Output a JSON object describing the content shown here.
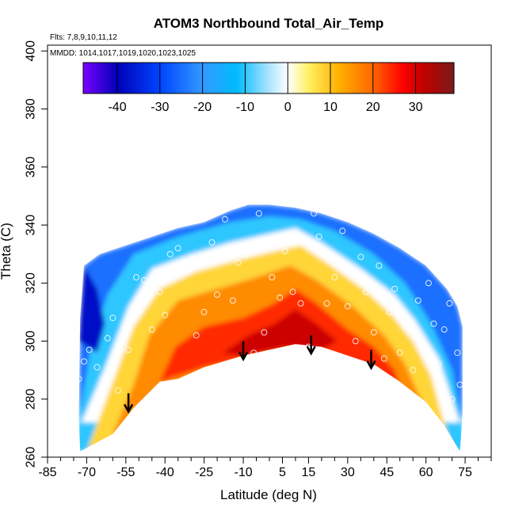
{
  "chart_data": {
    "type": "heatmap",
    "title": "ATOM3 Northbound Total_Air_Temp",
    "flights_label": "Flts: 7,8,9,10,11,12",
    "dates_label": "MMDD: 1014,1017,1019,1020,1023,1025",
    "xlabel": "Latitude (deg N)",
    "ylabel": "Theta (C)",
    "xlim": [
      -85,
      85
    ],
    "ylim": [
      260,
      402
    ],
    "x_ticks": [
      -85,
      -70,
      -55,
      -40,
      -25,
      -10,
      5,
      15,
      30,
      45,
      60,
      75
    ],
    "x_ticks_minor": [
      -80,
      -75,
      -65,
      -60,
      -50,
      -45,
      -35,
      -30,
      -20,
      -15,
      -5,
      0,
      10,
      20,
      25,
      35,
      40,
      50,
      55,
      65,
      70,
      80,
      85
    ],
    "y_ticks": [
      260,
      280,
      300,
      320,
      340,
      360,
      380,
      400
    ],
    "grid": false,
    "colorbar": {
      "range": [
        -48,
        39
      ],
      "ticks": [
        -40,
        -30,
        -20,
        -10,
        0,
        10,
        20,
        30
      ],
      "colors": [
        "#7a00ff",
        "#0000b8",
        "#0044ff",
        "#3399ff",
        "#00bbff",
        "#a0e0ff",
        "#ffffff",
        "#fff060",
        "#ffb000",
        "#ff6600",
        "#ff0000",
        "#c00000",
        "#7a1a1a"
      ],
      "color_stops": [
        -48,
        -40,
        -30,
        -20,
        -12,
        -5,
        0,
        5,
        12,
        20,
        27,
        32,
        39
      ]
    },
    "domain_top": [
      [
        -72.5,
        308
      ],
      [
        -71,
        326
      ],
      [
        -65,
        330
      ],
      [
        -55,
        333
      ],
      [
        -45,
        336
      ],
      [
        -35,
        339
      ],
      [
        -25,
        341
      ],
      [
        -15,
        345
      ],
      [
        -8,
        347
      ],
      [
        0,
        347
      ],
      [
        10,
        346
      ],
      [
        20,
        344
      ],
      [
        30,
        341
      ],
      [
        40,
        337
      ],
      [
        50,
        332
      ],
      [
        60,
        326
      ],
      [
        68,
        318
      ],
      [
        72,
        312
      ],
      [
        74,
        305
      ]
    ],
    "domain_bottom": [
      [
        -73,
        274
      ],
      [
        -72.5,
        262
      ],
      [
        -60,
        268
      ],
      [
        -52,
        277
      ],
      [
        -42,
        286
      ],
      [
        -35,
        287
      ],
      [
        -25,
        291
      ],
      [
        -10,
        295
      ],
      [
        0,
        297
      ],
      [
        10,
        299
      ],
      [
        20,
        298
      ],
      [
        30,
        295
      ],
      [
        40,
        292
      ],
      [
        50,
        286
      ],
      [
        60,
        279
      ],
      [
        67,
        271
      ],
      [
        73,
        262
      ],
      [
        74,
        275
      ]
    ],
    "ridge_path": [
      [
        -72,
        270
      ],
      [
        -63,
        289
      ],
      [
        -54,
        310
      ],
      [
        -45,
        323
      ],
      [
        -30,
        328
      ],
      [
        -15,
        332
      ],
      [
        0,
        335
      ],
      [
        10,
        337
      ],
      [
        20,
        332
      ],
      [
        35,
        323
      ],
      [
        48,
        314
      ],
      [
        56,
        305
      ],
      [
        65,
        292
      ],
      [
        73,
        270
      ]
    ],
    "hot_core_center": [
      8,
      304
    ],
    "observation_points": [
      [
        -73,
        287
      ],
      [
        -71,
        293
      ],
      [
        -69,
        297
      ],
      [
        -66,
        291
      ],
      [
        -62,
        301
      ],
      [
        -60,
        308
      ],
      [
        -58,
        283
      ],
      [
        -54,
        297
      ],
      [
        -51,
        322
      ],
      [
        -48,
        321
      ],
      [
        -45,
        304
      ],
      [
        -42,
        317
      ],
      [
        -40,
        309
      ],
      [
        -38,
        330
      ],
      [
        -35,
        332
      ],
      [
        -32,
        324
      ],
      [
        -30,
        287
      ],
      [
        -28,
        302
      ],
      [
        -25,
        310
      ],
      [
        -22,
        334
      ],
      [
        -20,
        316
      ],
      [
        -17,
        342
      ],
      [
        -14,
        314
      ],
      [
        -12,
        327
      ],
      [
        -9,
        330
      ],
      [
        -6,
        296
      ],
      [
        -4,
        344
      ],
      [
        -2,
        303
      ],
      [
        1,
        322
      ],
      [
        4,
        315
      ],
      [
        6,
        331
      ],
      [
        9,
        317
      ],
      [
        12,
        313
      ],
      [
        15,
        298
      ],
      [
        17,
        344
      ],
      [
        19,
        336
      ],
      [
        22,
        313
      ],
      [
        25,
        322
      ],
      [
        28,
        338
      ],
      [
        30,
        312
      ],
      [
        33,
        300
      ],
      [
        35,
        329
      ],
      [
        37,
        317
      ],
      [
        40,
        303
      ],
      [
        42,
        326
      ],
      [
        44,
        294
      ],
      [
        46,
        310
      ],
      [
        48,
        318
      ],
      [
        50,
        296
      ],
      [
        52,
        305
      ],
      [
        55,
        290
      ],
      [
        57,
        314
      ],
      [
        59,
        298
      ],
      [
        61,
        320
      ],
      [
        63,
        306
      ],
      [
        65,
        292
      ],
      [
        67,
        304
      ],
      [
        69,
        313
      ],
      [
        70,
        280
      ],
      [
        72,
        296
      ],
      [
        73,
        285
      ]
    ],
    "arrows": [
      [
        -54,
        282
      ],
      [
        -10,
        300
      ],
      [
        16,
        302
      ],
      [
        39,
        297
      ]
    ]
  }
}
